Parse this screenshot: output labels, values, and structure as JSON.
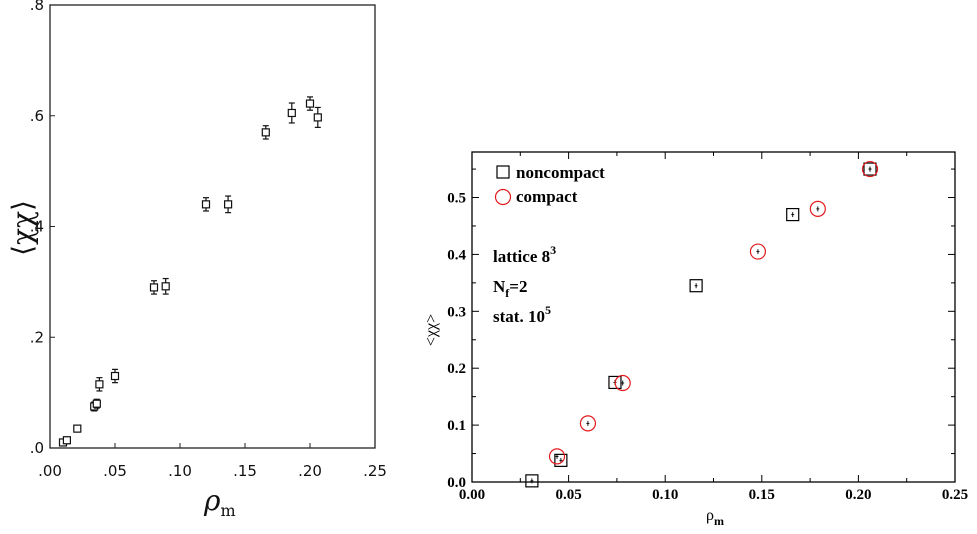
{
  "chart_data": [
    {
      "type": "scatter",
      "xlim": [
        0.0,
        0.25
      ],
      "ylim": [
        0.0,
        0.8
      ],
      "xticks": [
        ".00",
        ".05",
        ".10",
        ".15",
        ".20",
        ".25"
      ],
      "yticks": [
        ".0",
        ".2",
        ".4",
        ".6",
        ".8"
      ],
      "xlabel": "ρ",
      "xlabel_sub": "m",
      "ylabel": "⟨χχ⟩",
      "grid": false,
      "series": [
        {
          "marker": "open-square-with-errorbar",
          "points": [
            {
              "x": 0.01,
              "y": 0.01,
              "err": 0.006
            },
            {
              "x": 0.013,
              "y": 0.014,
              "err": 0.006
            },
            {
              "x": 0.021,
              "y": 0.035,
              "err": 0.006
            },
            {
              "x": 0.034,
              "y": 0.075,
              "err": 0.008
            },
            {
              "x": 0.036,
              "y": 0.08,
              "err": 0.008
            },
            {
              "x": 0.038,
              "y": 0.115,
              "err": 0.012
            },
            {
              "x": 0.05,
              "y": 0.13,
              "err": 0.012
            },
            {
              "x": 0.08,
              "y": 0.29,
              "err": 0.012
            },
            {
              "x": 0.089,
              "y": 0.292,
              "err": 0.014
            },
            {
              "x": 0.12,
              "y": 0.44,
              "err": 0.012
            },
            {
              "x": 0.137,
              "y": 0.44,
              "err": 0.015
            },
            {
              "x": 0.166,
              "y": 0.57,
              "err": 0.012
            },
            {
              "x": 0.186,
              "y": 0.605,
              "err": 0.018
            },
            {
              "x": 0.2,
              "y": 0.622,
              "err": 0.012
            },
            {
              "x": 0.206,
              "y": 0.597,
              "err": 0.018
            }
          ]
        }
      ]
    },
    {
      "type": "scatter",
      "xlim": [
        0.0,
        0.25
      ],
      "ylim": [
        0.0,
        0.58
      ],
      "xticks": [
        "0.00",
        "0.05",
        "0.10",
        "0.15",
        "0.20",
        "0.25"
      ],
      "yticks": [
        "0.0",
        "0.1",
        "0.2",
        "0.3",
        "0.4",
        "0.5"
      ],
      "xlabel": "ρ",
      "xlabel_sub": "m",
      "ylabel": "<χχ>",
      "grid": false,
      "legend_position": "top-left",
      "series": [
        {
          "name": "noncompact",
          "marker": "square",
          "color": "#000000",
          "points": [
            {
              "x": 0.031,
              "y": 0.002
            },
            {
              "x": 0.046,
              "y": 0.038
            },
            {
              "x": 0.074,
              "y": 0.175
            },
            {
              "x": 0.116,
              "y": 0.345
            },
            {
              "x": 0.166,
              "y": 0.47
            },
            {
              "x": 0.206,
              "y": 0.55
            }
          ]
        },
        {
          "name": "compact",
          "marker": "circle",
          "color": "#e31a1c",
          "points": [
            {
              "x": 0.044,
              "y": 0.045
            },
            {
              "x": 0.06,
              "y": 0.103
            },
            {
              "x": 0.078,
              "y": 0.174
            },
            {
              "x": 0.148,
              "y": 0.405
            },
            {
              "x": 0.179,
              "y": 0.48
            },
            {
              "x": 0.206,
              "y": 0.55
            }
          ]
        }
      ],
      "annotations": [
        {
          "text": "lattice 8",
          "sup": "3"
        },
        {
          "text": "N",
          "sub": "f",
          "rest": "=2"
        },
        {
          "text": "stat. 10",
          "sup": "5"
        }
      ]
    }
  ]
}
